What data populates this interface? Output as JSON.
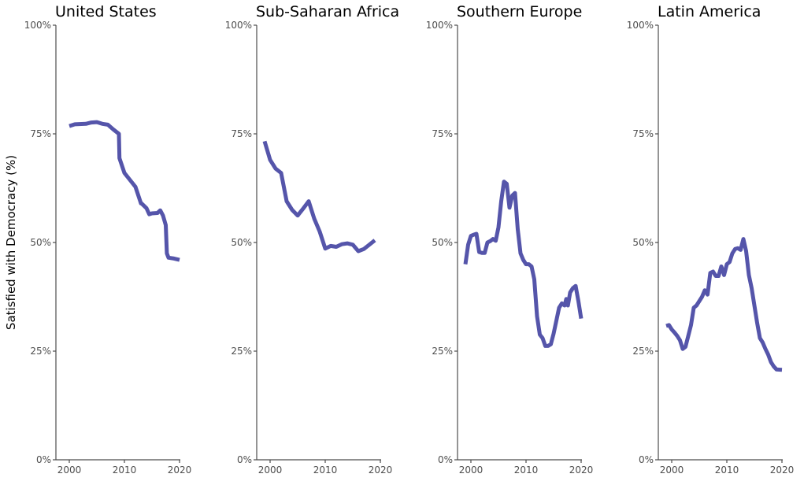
{
  "chart_data": {
    "type": "line",
    "ylabel": "Satisfied with Democracy (%)",
    "ylim": [
      0,
      100
    ],
    "yticks": [
      0,
      25,
      50,
      75,
      100
    ],
    "ytick_labels": [
      "0%",
      "25%",
      "50%",
      "75%",
      "100%"
    ],
    "xlim": [
      1998,
      2021
    ],
    "xticks": [
      2000,
      2010,
      2020
    ],
    "xtick_labels": [
      "2000",
      "2010",
      "2020"
    ],
    "grid": false,
    "line_color": "#5555aa",
    "panels": [
      {
        "title": "United States",
        "series": [
          {
            "name": "United States",
            "x": [
              2000,
              2001,
              2003,
              2004,
              2005,
              2006,
              2007,
              2008,
              2009,
              2009.1,
              2010,
              2011,
              2012,
              2013,
              2013.1,
              2014,
              2014.5,
              2015,
              2016,
              2016.5,
              2017,
              2017.5,
              2017.7,
              2018,
              2019,
              2020
            ],
            "y": [
              76.8,
              77.2,
              77.3,
              77.6,
              77.7,
              77.3,
              77.1,
              76.0,
              75.0,
              69.4,
              66.0,
              64.4,
              62.8,
              59.0,
              59.0,
              57.9,
              56.5,
              56.7,
              56.8,
              57.4,
              56.2,
              54.0,
              47.5,
              46.5,
              46.3,
              46.0
            ]
          }
        ]
      },
      {
        "title": "Sub-Saharan Africa",
        "series": [
          {
            "name": "Sub-Saharan Africa",
            "x": [
              1999,
              2000,
              2001,
              2002,
              2003,
              2004,
              2005,
              2006,
              2007,
              2008,
              2009,
              2010,
              2011,
              2012,
              2013,
              2014,
              2015,
              2016,
              2017,
              2018,
              2019
            ],
            "y": [
              73.3,
              69.0,
              67.0,
              66.0,
              59.5,
              57.5,
              56.2,
              57.8,
              59.5,
              55.5,
              52.5,
              48.6,
              49.2,
              49.0,
              49.6,
              49.8,
              49.5,
              48.0,
              48.5,
              49.5,
              50.5
            ]
          }
        ]
      },
      {
        "title": "Southern Europe",
        "series": [
          {
            "name": "Southern Europe",
            "x": [
              1999,
              1999.5,
              2000,
              2000.5,
              2001,
              2001.5,
              2002,
              2002.5,
              2003,
              2003.5,
              2004,
              2004.5,
              2005,
              2005.5,
              2006,
              2006.5,
              2007,
              2007.5,
              2008,
              2008.5,
              2009,
              2009.5,
              2010,
              2010.5,
              2011,
              2011.5,
              2012,
              2012.5,
              2013,
              2013.5,
              2014,
              2014.5,
              2015,
              2015.5,
              2016,
              2016.5,
              2017,
              2017.3,
              2017.6,
              2018,
              2018.5,
              2019,
              2019.5,
              2020
            ],
            "y": [
              45.0,
              49.5,
              51.5,
              51.8,
              52.0,
              47.8,
              47.6,
              47.6,
              50.0,
              50.3,
              50.8,
              50.4,
              53.5,
              59.5,
              64.0,
              63.5,
              58.0,
              60.8,
              61.4,
              53.0,
              47.5,
              46.0,
              45.0,
              45.0,
              44.5,
              41.5,
              33.0,
              28.8,
              28.0,
              26.2,
              26.2,
              26.6,
              29.0,
              32.0,
              35.0,
              36.0,
              35.5,
              37.0,
              35.5,
              38.5,
              39.5,
              40.0,
              36.5,
              32.5
            ]
          }
        ]
      },
      {
        "title": "Latin America",
        "series": [
          {
            "name": "Latin America",
            "x": [
              1999,
              1999.5,
              2000,
              2000.5,
              2001,
              2001.5,
              2002,
              2002.5,
              2003,
              2003.5,
              2004,
              2004.5,
              2005,
              2005.5,
              2006,
              2006.5,
              2007,
              2007.5,
              2008,
              2008.5,
              2009,
              2009.5,
              2010,
              2010.5,
              2011,
              2011.5,
              2012,
              2012.5,
              2013,
              2013.5,
              2014,
              2014.5,
              2015,
              2015.5,
              2016,
              2016.5,
              2017,
              2017.5,
              2018,
              2018.5,
              2019,
              2020
            ],
            "y": [
              30.8,
              31.0,
              30.0,
              29.3,
              28.5,
              27.5,
              25.5,
              26.0,
              28.5,
              31.0,
              35.0,
              35.5,
              36.5,
              37.5,
              39.0,
              38.0,
              43.0,
              43.3,
              42.3,
              42.3,
              44.5,
              42.5,
              45.0,
              45.5,
              47.5,
              48.5,
              48.7,
              48.3,
              50.8,
              48.0,
              42.5,
              39.5,
              35.5,
              31.5,
              28.0,
              27.0,
              25.5,
              24.2,
              22.5,
              21.5,
              20.8,
              20.7
            ]
          }
        ]
      }
    ]
  }
}
